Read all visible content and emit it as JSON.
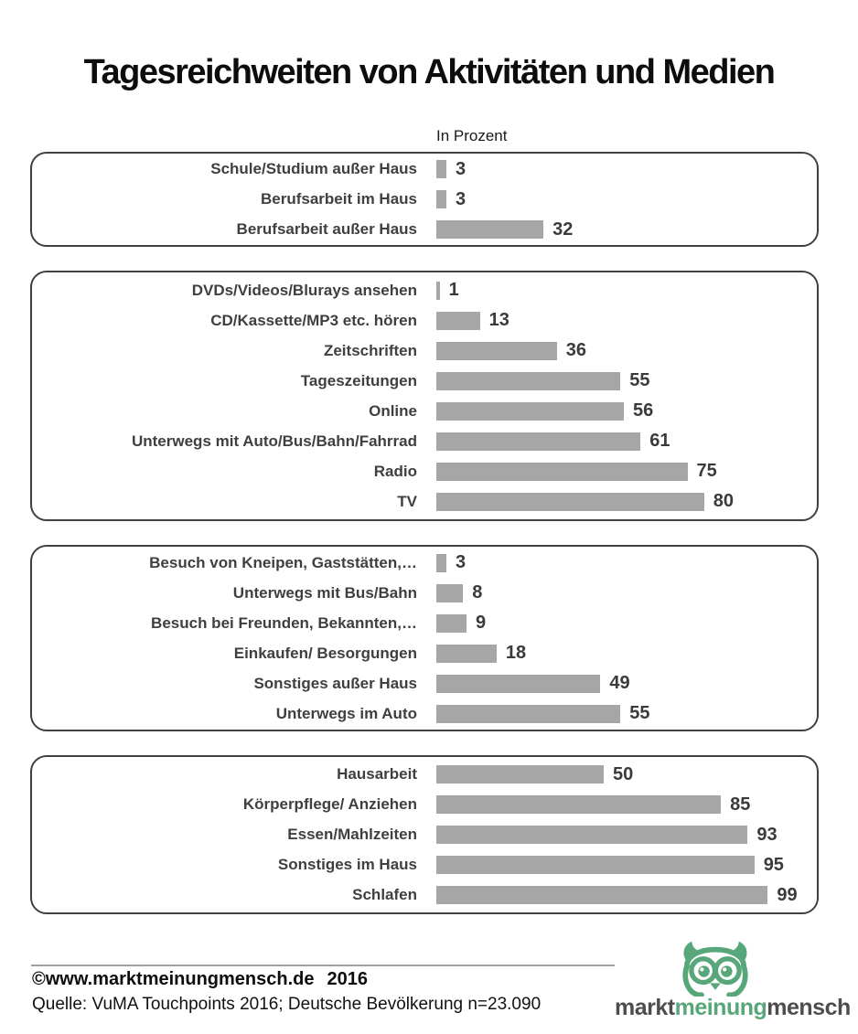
{
  "chart_data": {
    "type": "bar",
    "orientation": "horizontal",
    "title": "Tagesreichweiten von Aktivitäten und Medien",
    "subtitle": "In Prozent",
    "unit": "percent",
    "xlim": [
      0,
      100
    ],
    "bar_color": "#a6a6a6",
    "legend": "none",
    "grid": "off",
    "groups": [
      {
        "items": [
          {
            "label": "Schule/Studium außer Haus",
            "value": 3
          },
          {
            "label": "Berufsarbeit im Haus",
            "value": 3
          },
          {
            "label": "Berufsarbeit außer Haus",
            "value": 32
          }
        ]
      },
      {
        "items": [
          {
            "label": "DVDs/Videos/Blurays ansehen",
            "value": 1
          },
          {
            "label": "CD/Kassette/MP3 etc. hören",
            "value": 13
          },
          {
            "label": "Zeitschriften",
            "value": 36
          },
          {
            "label": "Tageszeitungen",
            "value": 55
          },
          {
            "label": "Online",
            "value": 56
          },
          {
            "label": "Unterwegs mit Auto/Bus/Bahn/Fahrrad",
            "value": 61
          },
          {
            "label": "Radio",
            "value": 75
          },
          {
            "label": "TV",
            "value": 80
          }
        ]
      },
      {
        "items": [
          {
            "label": "Besuch von Kneipen, Gaststätten,…",
            "value": 3
          },
          {
            "label": "Unterwegs mit Bus/Bahn",
            "value": 8
          },
          {
            "label": "Besuch bei Freunden, Bekannten,…",
            "value": 9
          },
          {
            "label": "Einkaufen/ Besorgungen",
            "value": 18
          },
          {
            "label": "Sonstiges außer Haus",
            "value": 49
          },
          {
            "label": "Unterwegs im Auto",
            "value": 55
          }
        ]
      },
      {
        "items": [
          {
            "label": "Hausarbeit",
            "value": 50
          },
          {
            "label": "Körperpflege/ Anziehen",
            "value": 85
          },
          {
            "label": "Essen/Mahlzeiten",
            "value": 93
          },
          {
            "label": "Sonstiges im Haus",
            "value": 95
          },
          {
            "label": "Schlafen",
            "value": 99
          }
        ]
      }
    ]
  },
  "footer": {
    "copyright": "©www.marktmeinungmensch.de",
    "year": "2016",
    "source": "Quelle: VuMA Touchpoints 2016; Deutsche Bevölkerung n=23.090",
    "logo": {
      "part1": "markt",
      "part2": "meinung",
      "part3": "mensch",
      "icon": "owl-icon"
    }
  },
  "colors": {
    "bar": "#a6a6a6",
    "label_text": "#3f3f3f",
    "box_border": "#404040",
    "title_text": "#0d0d0d",
    "divider": "#a0a0a0",
    "logo_green": "#57a77b",
    "logo_gray": "#4d4d4d"
  }
}
